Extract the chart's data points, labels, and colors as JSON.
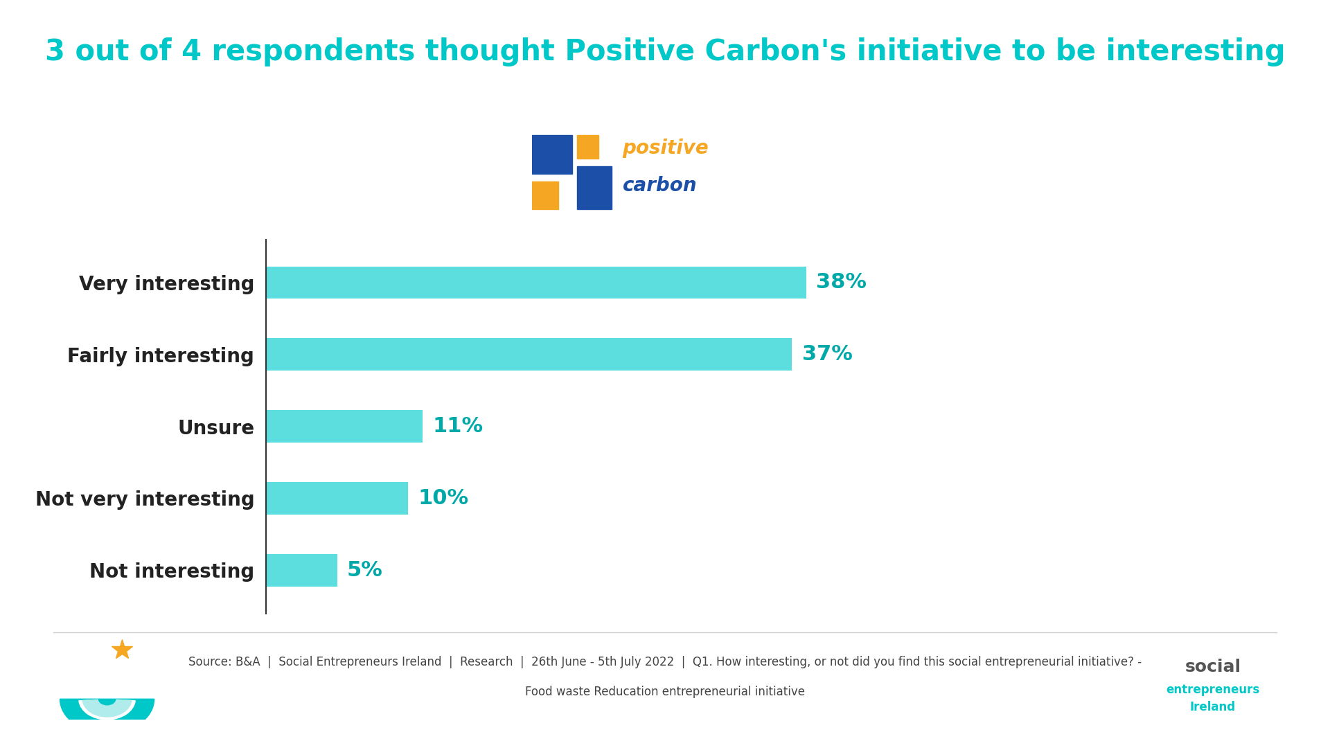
{
  "title": "3 out of 4 respondents thought Positive Carbon's initiative to be interesting",
  "title_color": "#00C8C8",
  "title_fontsize": 30,
  "categories": [
    "Very interesting",
    "Fairly interesting",
    "Unsure",
    "Not very interesting",
    "Not interesting"
  ],
  "values": [
    38,
    37,
    11,
    10,
    5
  ],
  "bar_color": "#5DDEDE",
  "value_label_color": "#00A8A8",
  "background_color": "#FFFFFF",
  "footer_text_line1": "Source: B&A  |  Social Entrepreneurs Ireland  |  Research  |  26th June - 5th July 2022  |  Q1. How interesting, or not did you find this social entrepreneurial initiative? -",
  "footer_text_line2": "Food waste Reducation entrepreneurial initiative",
  "footer_fontsize": 12,
  "bar_label_fontsize": 22,
  "category_fontsize": 20,
  "xlim": [
    0,
    58
  ],
  "logo_blue": "#1B4FA8",
  "logo_yellow": "#F5A623",
  "logo_teal": "#00C8C8",
  "sei_teal": "#00C8C8",
  "sei_yellow": "#F5A623",
  "category_color": "#222222",
  "spine_color": "#333333",
  "sep_line_color": "#CCCCCC",
  "footer_color": "#444444",
  "sei_social_color": "#555555",
  "sei_ent_color": "#00C8C8"
}
